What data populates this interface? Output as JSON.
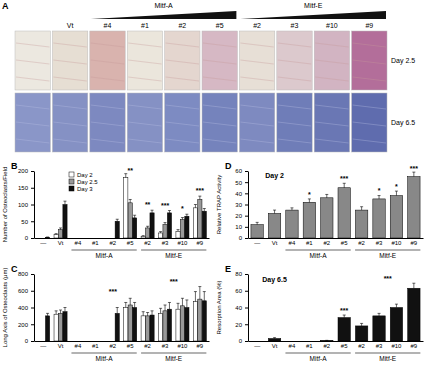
{
  "panel_a": {
    "label": "A",
    "columns": [
      null,
      "Vt",
      "#4",
      "#1",
      "#2",
      "#5",
      "#2",
      "#3",
      "#10",
      "#9"
    ],
    "groups": [
      {
        "label": "Mitf-A",
        "from": 2,
        "to": 5
      },
      {
        "label": "Mitf-E",
        "from": 6,
        "to": 9
      }
    ],
    "rows": [
      "Day 2.5",
      "Day 6.5"
    ]
  },
  "chart_data": [
    {
      "type": "bar",
      "title": "B",
      "y_label": "Number of Osteoclasts/Field",
      "categories": [
        "—",
        "Vt",
        "#4",
        "#1",
        "#2",
        "#5",
        "#2",
        "#3",
        "#10",
        "#9"
      ],
      "groups": [
        {
          "label": "Mitf-A",
          "from": 2,
          "to": 5
        },
        {
          "label": "Mitf-E",
          "from": 6,
          "to": 9
        }
      ],
      "series": [
        {
          "name": "Day 2",
          "color": "#ffffff",
          "values": [
            0,
            10,
            0,
            0,
            0,
            180,
            5,
            15,
            20,
            90
          ],
          "errors": [
            0,
            3,
            0,
            0,
            0,
            12,
            2,
            4,
            5,
            10
          ]
        },
        {
          "name": "Day 2.5",
          "color": "#999999",
          "values": [
            0,
            25,
            0,
            0,
            0,
            105,
            30,
            40,
            55,
            115
          ],
          "errors": [
            0,
            5,
            0,
            0,
            0,
            10,
            5,
            6,
            6,
            10
          ]
        },
        {
          "name": "Day 3",
          "color": "#111111",
          "values": [
            2,
            100,
            0,
            0,
            50,
            60,
            75,
            75,
            65,
            80
          ],
          "errors": [
            1,
            10,
            0,
            0,
            6,
            8,
            8,
            7,
            6,
            8
          ]
        }
      ],
      "ylim": [
        0,
        200
      ],
      "yticks": [
        0,
        50,
        100,
        150,
        200
      ],
      "legend": "top",
      "annotations": [
        {
          "text": "**",
          "x": 5,
          "y": 194
        },
        {
          "text": "**",
          "x": 6,
          "y": 92
        },
        {
          "text": "***",
          "x": 7,
          "y": 90
        },
        {
          "text": "*",
          "x": 8,
          "y": 80
        },
        {
          "text": "***",
          "x": 9,
          "y": 135
        }
      ]
    },
    {
      "type": "bar",
      "title": "C",
      "y_label": "Long Axis of Osteoclasts (μm)",
      "categories": [
        "—",
        "Vt",
        "#4",
        "#1",
        "#2",
        "#5",
        "#2",
        "#3",
        "#10",
        "#9"
      ],
      "groups": [
        {
          "label": "Mitf-A",
          "from": 2,
          "to": 5
        },
        {
          "label": "Mitf-E",
          "from": 6,
          "to": 9
        }
      ],
      "series": [
        {
          "color": "#ffffff",
          "values": [
            0,
            320,
            0,
            0,
            0,
            400,
            300,
            330,
            380,
            470
          ],
          "errors": [
            0,
            40,
            0,
            0,
            0,
            60,
            50,
            60,
            70,
            120
          ]
        },
        {
          "color": "#999999",
          "values": [
            0,
            330,
            0,
            0,
            0,
            430,
            300,
            360,
            420,
            500
          ],
          "errors": [
            0,
            40,
            0,
            0,
            0,
            80,
            40,
            70,
            90,
            150
          ]
        },
        {
          "color": "#111111",
          "values": [
            300,
            350,
            0,
            0,
            330,
            400,
            310,
            380,
            400,
            480
          ],
          "errors": [
            30,
            50,
            0,
            0,
            70,
            60,
            50,
            80,
            90,
            110
          ]
        }
      ],
      "ylim": [
        0,
        800
      ],
      "yticks": [
        0,
        200,
        400,
        600,
        800
      ],
      "annotations": [
        {
          "text": "***",
          "x": 4,
          "y": 560
        },
        {
          "text": "***",
          "x": 7.5,
          "y": 680
        }
      ]
    },
    {
      "type": "bar",
      "title": "D",
      "y_label": "Relative TRAP Activity",
      "categories": [
        "—",
        "Vt",
        "#4",
        "#1",
        "#2",
        "#5",
        "#2",
        "#3",
        "#10",
        "#9"
      ],
      "groups": [
        {
          "label": "Mitf-A",
          "from": 2,
          "to": 5
        },
        {
          "label": "Mitf-E",
          "from": 6,
          "to": 9
        }
      ],
      "values": [
        12,
        22,
        25,
        32,
        36,
        45,
        25,
        35,
        38,
        55
      ],
      "errors": [
        2,
        3,
        2,
        3,
        3,
        4,
        3,
        3,
        4,
        4
      ],
      "color": "#888888",
      "ylim": [
        0,
        60
      ],
      "yticks": [
        0,
        10,
        20,
        30,
        40,
        50,
        60
      ],
      "annotations": [
        {
          "text": "Day 2",
          "x": 1,
          "y": 54
        },
        {
          "text": "*",
          "x": 3,
          "y": 37
        },
        {
          "text": "***",
          "x": 5,
          "y": 51
        },
        {
          "text": "*",
          "x": 7,
          "y": 40
        },
        {
          "text": "*",
          "x": 8,
          "y": 44
        },
        {
          "text": "***",
          "x": 9,
          "y": 60
        }
      ]
    },
    {
      "type": "bar",
      "title": "E",
      "y_label": "Resorption Area (%)",
      "categories": [
        "—",
        "Vt",
        "#4",
        "#1",
        "#2",
        "#5",
        "#2",
        "#3",
        "#10",
        "#9"
      ],
      "groups": [
        {
          "label": "Mitf-A",
          "from": 2,
          "to": 5
        },
        {
          "label": "Mitf-E",
          "from": 6,
          "to": 9
        }
      ],
      "values": [
        0,
        3,
        0,
        0,
        0.5,
        28,
        18,
        30,
        40,
        63
      ],
      "errors": [
        0,
        1,
        0,
        0,
        0.3,
        3,
        3,
        3,
        4,
        6
      ],
      "color": "#111111",
      "ylim": [
        0,
        80
      ],
      "yticks": [
        0,
        20,
        40,
        60,
        80
      ],
      "annotations": [
        {
          "text": "Day 6.5",
          "x": 1,
          "y": 70
        },
        {
          "text": "***",
          "x": 5,
          "y": 34
        },
        {
          "text": "***",
          "x": 7.5,
          "y": 72
        }
      ]
    }
  ]
}
